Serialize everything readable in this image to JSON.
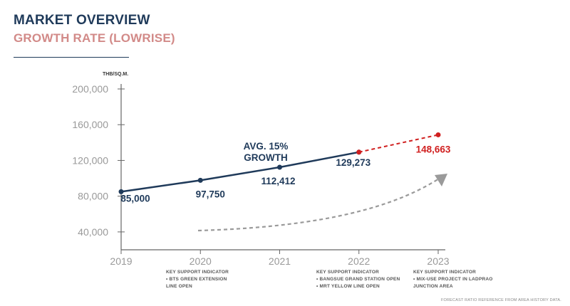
{
  "header": {
    "title": "MARKET OVERVIEW",
    "subtitle": "GROWTH RATE (LOWRISE)"
  },
  "chart_data": {
    "type": "line",
    "ylabel": "THB/SQ.M.",
    "xlabel": "",
    "ylim": [
      20000,
      200000
    ],
    "y_ticks": [
      "200,000",
      "160,000",
      "120,000",
      "80,000",
      "40,000"
    ],
    "y_tick_values": [
      200000,
      160000,
      120000,
      80000,
      40000
    ],
    "categories": [
      "2019",
      "2020",
      "2021",
      "2022",
      "2023"
    ],
    "series": [
      {
        "values": [
          85000,
          97750,
          112412,
          129273,
          null
        ],
        "labels": [
          "85,000",
          "97,750",
          "112,412",
          "129,273",
          ""
        ],
        "color": "#1f3a5a",
        "style": "solid"
      },
      {
        "values": [
          null,
          null,
          null,
          129273,
          148663
        ],
        "labels": [
          "",
          "",
          "",
          "",
          "148,663"
        ],
        "color": "#d01f1f",
        "style": "dashed"
      }
    ],
    "annotation": {
      "line1": "AVG. 15%",
      "line2": "GROWTH"
    },
    "grid": false
  },
  "notes": [
    {
      "heading": "KEY SUPPORT INDICATOR",
      "lines": [
        "• BTS GREEN EXTENSION",
        "LINE OPEN"
      ]
    },
    {
      "heading": "KEY SUPPORT INDICATOR",
      "lines": [
        "• BANGSUE GRAND STATION OPEN",
        "• MRT YELLOW LINE OPEN"
      ]
    },
    {
      "heading": "KEY SUPPORT INDICATOR",
      "lines": [
        "• MIX-USE PROJECT IN LADPRAO",
        "JUNCTION AREA"
      ]
    }
  ],
  "footer": {
    "source": "FORECAST RATIO REFERENCE FROM AREA HISTORY DATA."
  },
  "colors": {
    "navy": "#1f3a5a",
    "accent": "#d28a88",
    "forecast": "#d01f1f",
    "arrow": "#9a9a9a"
  }
}
